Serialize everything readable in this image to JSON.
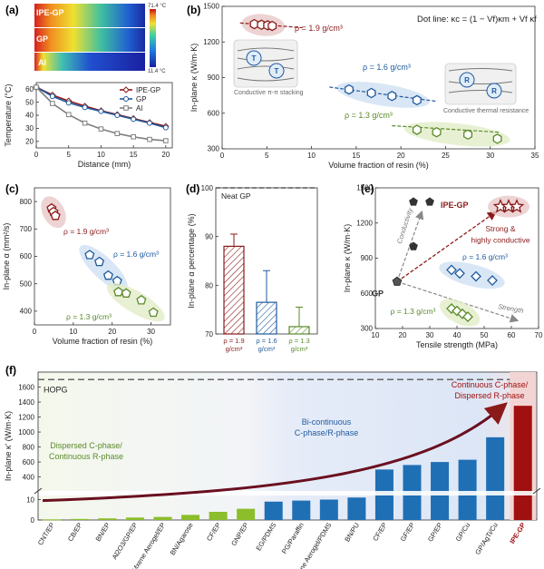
{
  "colors": {
    "ipe": "#8b1a1a",
    "gp": "#1f5a9e",
    "al": "#808080",
    "green": "#5a8a2a",
    "blue_shade": "#cfe0f2",
    "green_shade": "#e2ecc8",
    "red_shade": "#e8c8c8",
    "bar_blue": "#1f6fb5",
    "bar_green": "#8cbd2a",
    "ipe_bar": "#a01010"
  },
  "panel_a": {
    "label": "(a)",
    "map_labels": [
      "IPE-GP",
      "GP",
      "Al"
    ],
    "scale_max": "71.4 °C",
    "scale_min": "11.4 °C"
  },
  "panel_b": {
    "label": "(b)",
    "formula": "Dot line:  κc = (1 − Vf)κm + Vf κf",
    "labels": [
      "ρ = 1.9 g/cm³",
      "ρ = 1.6 g/cm³",
      "ρ = 1.3 g/cm³"
    ],
    "inset_left": "Conductive π-π stacking",
    "inset_right": "Conductive thermal resistance",
    "inset_left_sym": "T",
    "inset_right_sym": "R"
  },
  "panel_c": {
    "label": "(c)",
    "labels": [
      "ρ = 1.9 g/cm³",
      "ρ = 1.6 g/cm³",
      "ρ = 1.3 g/cm³"
    ]
  },
  "panel_d": {
    "label": "(d)",
    "neat": "Neat GP",
    "cat_lines": [
      [
        "ρ = 1.9",
        "g/cm³"
      ],
      [
        "ρ = 1.6",
        "g/cm³"
      ],
      [
        "ρ = 1.3",
        "g/cm³"
      ]
    ]
  },
  "panel_e": {
    "label": "(e)",
    "gp": "GP",
    "ipe": "IPE-GP",
    "strong": [
      "Strong &",
      "highly conductive"
    ],
    "conductivity": "Conductivity",
    "strength": "Strength",
    "l16": "ρ = 1.6 g/cm³",
    "l13": "ρ = 1.3 g/cm³"
  },
  "panel_f": {
    "label": "(f)",
    "hopg": "HOPG",
    "region_left": [
      "Dispersed C-phase/",
      "Continuous R-phase"
    ],
    "region_mid": [
      "Bi-continuous",
      "C-phase/R-phase"
    ],
    "region_right": [
      "Continuous C-phase/",
      "Dispersed R-phase"
    ]
  },
  "chart_data": [
    {
      "panel": "a",
      "type": "line",
      "xlabel": "Distance (mm)",
      "ylabel": "Temperature (°C)",
      "xlim": [
        0,
        21
      ],
      "ylim": [
        15,
        65
      ],
      "xticks": [
        0,
        5,
        10,
        15,
        20
      ],
      "yticks": [
        20,
        30,
        40,
        50,
        60
      ],
      "series": [
        {
          "name": "IPE-GP",
          "x": [
            0,
            2.5,
            5,
            7.5,
            10,
            12.5,
            15,
            17.5,
            20
          ],
          "y": [
            61.5,
            55.5,
            51,
            47,
            43.5,
            40.5,
            37.5,
            34.5,
            31.5
          ]
        },
        {
          "name": "GP",
          "x": [
            0,
            2.5,
            5,
            7.5,
            10,
            12.5,
            15,
            17.5,
            20
          ],
          "y": [
            61.5,
            54.5,
            49.5,
            46,
            43,
            40,
            37,
            34,
            30.5
          ]
        },
        {
          "name": "Al",
          "x": [
            0,
            2.5,
            5,
            7.5,
            10,
            12.5,
            15,
            17.5,
            20
          ],
          "y": [
            61.5,
            49,
            40.5,
            34,
            29.5,
            26,
            23.5,
            21.5,
            20.5
          ]
        }
      ]
    },
    {
      "panel": "b",
      "type": "scatter",
      "xlabel": "Volume fraction of resin (%)",
      "ylabel": "In-plane κ (W/m·K)",
      "xlim": [
        0,
        35
      ],
      "ylim": [
        300,
        1500
      ],
      "xticks": [
        0,
        5,
        10,
        15,
        20,
        25,
        30,
        35
      ],
      "yticks": [
        300,
        600,
        900,
        1200,
        1500
      ],
      "series": [
        {
          "name": "ρ = 1.9 g/cm³",
          "x": [
            3.6,
            4.4,
            5.1,
            5.6
          ],
          "y": [
            1350,
            1345,
            1340,
            1335
          ]
        },
        {
          "name": "ρ = 1.6 g/cm³",
          "x": [
            14.2,
            16.7,
            19.0,
            21.8
          ],
          "y": [
            800,
            770,
            745,
            710
          ]
        },
        {
          "name": "ρ = 1.3 g/cm³",
          "x": [
            21.8,
            24.0,
            27.5,
            30.8
          ],
          "y": [
            460,
            440,
            420,
            385
          ]
        }
      ]
    },
    {
      "panel": "c",
      "type": "scatter",
      "xlabel": "Volume fraction of resin (%)",
      "ylabel": "In-plane α (mm²/s)",
      "xlim": [
        0,
        35
      ],
      "ylim": [
        350,
        850
      ],
      "xticks": [
        0,
        10,
        20,
        30
      ],
      "yticks": [
        400,
        500,
        600,
        700,
        800
      ],
      "series": [
        {
          "name": "ρ = 1.9 g/cm³",
          "x": [
            4.4,
            4.9,
            5.4
          ],
          "y": [
            775,
            762,
            748
          ]
        },
        {
          "name": "ρ = 1.6 g/cm³",
          "x": [
            14.2,
            16.7,
            19.0,
            21.3
          ],
          "y": [
            605,
            580,
            530,
            510
          ]
        },
        {
          "name": "ρ = 1.3 g/cm³",
          "x": [
            21.6,
            23.6,
            27.5,
            30.6
          ],
          "y": [
            470,
            465,
            440,
            395
          ]
        }
      ]
    },
    {
      "panel": "d",
      "type": "bar",
      "ylabel": "In-plane α percentage (%)",
      "ylim": [
        70,
        100
      ],
      "yticks": [
        70,
        80,
        90,
        100
      ],
      "categories": [
        "ρ = 1.9 g/cm³",
        "ρ = 1.6 g/cm³",
        "ρ = 1.3 g/cm³"
      ],
      "values": [
        88,
        76.5,
        71.5
      ],
      "errors": [
        2.5,
        6.5,
        4
      ],
      "reference": {
        "name": "Neat GP",
        "value": 100
      }
    },
    {
      "panel": "e",
      "type": "scatter",
      "xlabel": "Tensile strength (MPa)",
      "ylabel": "In-plane κ (W/m·K)",
      "xlim": [
        10,
        70
      ],
      "ylim": [
        300,
        1500
      ],
      "xticks": [
        10,
        20,
        30,
        40,
        50,
        60,
        70
      ],
      "yticks": [
        300,
        600,
        900,
        1200,
        1500
      ],
      "series": [
        {
          "name": "GP",
          "x": [
            18
          ],
          "y": [
            700
          ]
        },
        {
          "name": "ρ = 1.9 g/cm³ (IPE-GP)",
          "x": [
            56,
            59,
            62
          ],
          "y": [
            1340,
            1340,
            1340
          ]
        },
        {
          "name": "ρ = 1.6 g/cm³",
          "x": [
            38,
            41,
            47,
            53
          ],
          "y": [
            800,
            770,
            745,
            710
          ]
        },
        {
          "name": "ρ = 1.3 g/cm³",
          "x": [
            38,
            40,
            42,
            44
          ],
          "y": [
            470,
            450,
            425,
            400
          ]
        },
        {
          "name": "other",
          "x": [
            24,
            24,
            30
          ],
          "y": [
            1000,
            1380,
            1380
          ]
        }
      ]
    },
    {
      "panel": "f",
      "type": "bar",
      "ylabel": "In-plane κ' (W/m·K)",
      "yticks_upper": [
        400,
        600,
        800,
        1000,
        1200,
        1400,
        1600
      ],
      "yticks_lower": [
        0,
        10
      ],
      "hopg": 1700,
      "categories": [
        "CNT/EP",
        "CB/EP",
        "BN/EP",
        "Al2O3/GP/EP",
        "Mxene Aerogel/EP",
        "BN/Agarose",
        "CF/EP",
        "GNP/EP",
        "EG/PDMS",
        "PG/Paraffin",
        "Graphene Aerogel/PDMS",
        "BN/PU",
        "CF/EP",
        "GF/EP",
        "GP/EP",
        "GP/Cu",
        "GP/AgTi/Cu",
        "IPE-GP"
      ],
      "values": [
        0.3,
        0.5,
        0.8,
        1.2,
        1.5,
        2.5,
        4,
        5.5,
        9,
        9.5,
        10,
        11,
        500,
        560,
        600,
        630,
        930,
        1350
      ]
    }
  ]
}
